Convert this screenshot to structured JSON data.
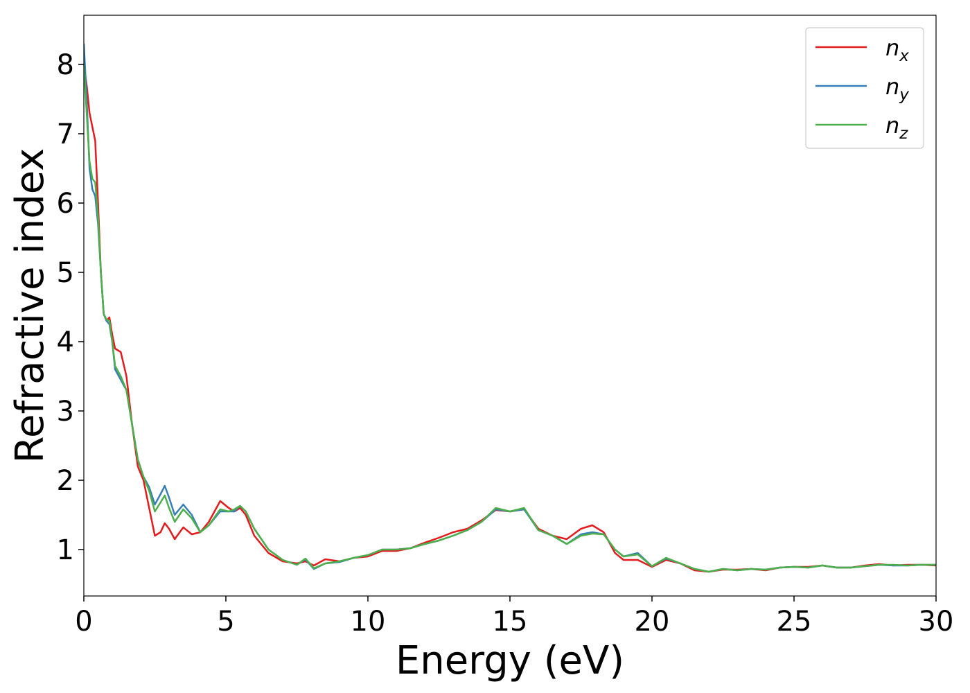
{
  "chart_data": {
    "type": "line",
    "x_label": "Energy (eV)",
    "y_label": "Refractive index",
    "x": [
      0,
      0.1,
      0.2,
      0.3,
      0.4,
      0.5,
      0.6,
      0.7,
      0.8,
      0.9,
      1.0,
      1.1,
      1.3,
      1.5,
      1.7,
      1.9,
      2.1,
      2.3,
      2.5,
      2.7,
      2.85,
      3.0,
      3.2,
      3.5,
      3.8,
      4.1,
      4.4,
      4.8,
      5.1,
      5.3,
      5.5,
      5.7,
      6.0,
      6.5,
      7.0,
      7.5,
      7.8,
      8.1,
      8.5,
      9.0,
      9.5,
      10,
      10.5,
      11,
      11.5,
      12,
      12.5,
      13,
      13.5,
      14,
      14.5,
      15,
      15.5,
      16,
      16.5,
      17,
      17.5,
      17.9,
      18.3,
      18.7,
      19,
      19.5,
      20,
      20.5,
      21,
      21.5,
      22,
      22.5,
      23,
      23.5,
      24,
      24.5,
      25,
      25.5,
      26,
      26.5,
      27,
      27.5,
      28,
      28.5,
      29,
      29.5,
      30
    ],
    "series": [
      {
        "name": "nx",
        "color": "#e41a1c",
        "values": [
          8.0,
          7.7,
          7.3,
          7.1,
          6.9,
          6.0,
          5.0,
          4.4,
          4.3,
          4.35,
          4.1,
          3.9,
          3.85,
          3.5,
          2.8,
          2.2,
          2.0,
          1.6,
          1.2,
          1.25,
          1.38,
          1.3,
          1.15,
          1.32,
          1.22,
          1.25,
          1.4,
          1.7,
          1.6,
          1.55,
          1.6,
          1.5,
          1.2,
          0.95,
          0.83,
          0.8,
          0.83,
          0.77,
          0.86,
          0.83,
          0.88,
          0.9,
          0.98,
          0.98,
          1.02,
          1.1,
          1.17,
          1.25,
          1.3,
          1.42,
          1.57,
          1.55,
          1.58,
          1.3,
          1.2,
          1.15,
          1.3,
          1.35,
          1.25,
          0.95,
          0.85,
          0.85,
          0.75,
          0.85,
          0.8,
          0.7,
          0.68,
          0.71,
          0.71,
          0.72,
          0.7,
          0.74,
          0.75,
          0.75,
          0.77,
          0.74,
          0.74,
          0.77,
          0.79,
          0.77,
          0.78,
          0.78,
          0.77
        ]
      },
      {
        "name": "ny",
        "color": "#377eb8",
        "values": [
          8.3,
          7.5,
          6.5,
          6.2,
          6.1,
          5.7,
          5.0,
          4.4,
          4.3,
          4.25,
          4.0,
          3.6,
          3.45,
          3.3,
          2.8,
          2.3,
          2.05,
          1.9,
          1.65,
          1.8,
          1.92,
          1.75,
          1.5,
          1.65,
          1.5,
          1.25,
          1.35,
          1.55,
          1.55,
          1.55,
          1.63,
          1.55,
          1.3,
          1.0,
          0.85,
          0.78,
          0.86,
          0.72,
          0.8,
          0.82,
          0.88,
          0.92,
          1.0,
          1.0,
          1.02,
          1.08,
          1.13,
          1.2,
          1.28,
          1.4,
          1.58,
          1.55,
          1.58,
          1.28,
          1.2,
          1.08,
          1.22,
          1.25,
          1.22,
          1.0,
          0.9,
          0.95,
          0.76,
          0.87,
          0.8,
          0.72,
          0.68,
          0.72,
          0.7,
          0.72,
          0.71,
          0.74,
          0.75,
          0.74,
          0.77,
          0.74,
          0.74,
          0.76,
          0.78,
          0.77,
          0.77,
          0.78,
          0.78
        ]
      },
      {
        "name": "nz",
        "color": "#4daf4a",
        "values": [
          8.0,
          7.3,
          6.6,
          6.35,
          6.3,
          5.8,
          5.0,
          4.4,
          4.32,
          4.3,
          4.0,
          3.65,
          3.5,
          3.3,
          2.8,
          2.3,
          2.05,
          1.85,
          1.55,
          1.68,
          1.78,
          1.6,
          1.4,
          1.58,
          1.45,
          1.25,
          1.35,
          1.58,
          1.55,
          1.58,
          1.63,
          1.55,
          1.3,
          1.0,
          0.85,
          0.78,
          0.87,
          0.73,
          0.8,
          0.83,
          0.88,
          0.92,
          1.0,
          1.0,
          1.02,
          1.08,
          1.13,
          1.2,
          1.28,
          1.4,
          1.6,
          1.55,
          1.6,
          1.28,
          1.2,
          1.08,
          1.2,
          1.23,
          1.22,
          1.0,
          0.9,
          0.93,
          0.76,
          0.88,
          0.8,
          0.72,
          0.68,
          0.72,
          0.7,
          0.72,
          0.71,
          0.74,
          0.75,
          0.74,
          0.77,
          0.74,
          0.74,
          0.76,
          0.78,
          0.78,
          0.77,
          0.78,
          0.78
        ]
      }
    ],
    "xlim": [
      0,
      30
    ],
    "xticks": [
      0,
      5,
      10,
      15,
      20,
      25,
      30
    ],
    "ylim": [
      0.33,
      8.71
    ],
    "yticks": [
      1,
      2,
      3,
      4,
      5,
      6,
      7,
      8
    ],
    "legend": "upper right"
  }
}
